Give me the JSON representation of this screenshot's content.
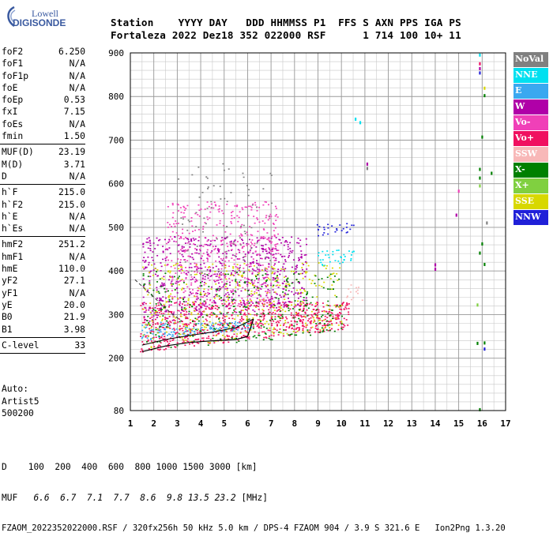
{
  "logo": {
    "line1": "Lowell",
    "line2": "DIGISONDE"
  },
  "header": {
    "labels": {
      "station": "Station",
      "yyyy": "YYYY",
      "day": "DAY",
      "ddd": "DDD",
      "hhmmss": "HHMMSS",
      "p1": "P1",
      "ffs": "FFS",
      "s": "S",
      "axn": "AXN",
      "pps": "PPS",
      "iga": "IGA",
      "ps": "PS"
    },
    "values": {
      "station": "Fortaleza",
      "yyyy": "2022",
      "day": "Dez18",
      "ddd": "352",
      "hhmmss": "022000",
      "p1": "RSF",
      "ffs": "",
      "s": "1",
      "axn": "714",
      "pps": "100",
      "iga": "10+",
      "ps": "11"
    }
  },
  "params": [
    {
      "group": 1,
      "items": [
        {
          "name": "foF2",
          "value": "6.250"
        },
        {
          "name": "foF1",
          "value": "N/A"
        },
        {
          "name": "foF1p",
          "value": "N/A"
        },
        {
          "name": "foE",
          "value": "N/A"
        },
        {
          "name": "foEp",
          "value": "0.53"
        },
        {
          "name": "fxI",
          "value": "7.15"
        },
        {
          "name": "foEs",
          "value": "N/A"
        },
        {
          "name": "fmin",
          "value": "1.50"
        }
      ]
    },
    {
      "group": 2,
      "items": [
        {
          "name": "MUF(D)",
          "value": "23.19"
        },
        {
          "name": "M(D)",
          "value": "3.71"
        },
        {
          "name": "D",
          "value": "N/A"
        }
      ]
    },
    {
      "group": 3,
      "items": [
        {
          "name": "h`F",
          "value": "215.0"
        },
        {
          "name": "h`F2",
          "value": "215.0"
        },
        {
          "name": "h`E",
          "value": "N/A"
        },
        {
          "name": "h`Es",
          "value": "N/A"
        }
      ]
    },
    {
      "group": 4,
      "items": [
        {
          "name": "hmF2",
          "value": "251.2"
        },
        {
          "name": "hmF1",
          "value": "N/A"
        },
        {
          "name": "hmE",
          "value": "110.0"
        },
        {
          "name": "yF2",
          "value": "27.1"
        },
        {
          "name": "yF1",
          "value": "N/A"
        },
        {
          "name": "yE",
          "value": "20.0"
        },
        {
          "name": "B0",
          "value": "21.9"
        },
        {
          "name": "B1",
          "value": "3.98"
        }
      ]
    },
    {
      "group": 5,
      "items": [
        {
          "name": "C-level",
          "value": "33"
        }
      ]
    }
  ],
  "auto": {
    "line1": "Auto:",
    "line2": "Artist5",
    "line3": "500200"
  },
  "legend": [
    {
      "label": "NoVal",
      "bg": "#808080",
      "fg": "#ffffff"
    },
    {
      "label": "NNE",
      "bg": "#00e0f0",
      "fg": "#ffffff"
    },
    {
      "label": "E",
      "bg": "#3aa8f0",
      "fg": "#ffffff"
    },
    {
      "label": "W",
      "bg": "#b000a8",
      "fg": "#ffffff"
    },
    {
      "label": "Vo-",
      "bg": "#f040b8",
      "fg": "#ffffff"
    },
    {
      "label": "Vo+",
      "bg": "#f01060",
      "fg": "#ffffff"
    },
    {
      "label": "SSW",
      "bg": "#f8b8b8",
      "fg": "#ffffff"
    },
    {
      "label": "X-",
      "bg": "#008000",
      "fg": "#ffffff"
    },
    {
      "label": "X+",
      "bg": "#80d040",
      "fg": "#ffffff"
    },
    {
      "label": "SSE",
      "bg": "#d8d800",
      "fg": "#ffffff"
    },
    {
      "label": "NNW",
      "bg": "#2020d8",
      "fg": "#ffffff"
    }
  ],
  "footer": {
    "d_label": "D",
    "d_values": [
      "100",
      "200",
      "400",
      "600",
      "800",
      "1000",
      "1500",
      "3000"
    ],
    "d_unit": "[km]",
    "muf_label": "MUF",
    "muf_values": [
      "6.6",
      "6.7",
      "7.1",
      "7.7",
      "8.6",
      "9.8",
      "13.5",
      "23.2"
    ],
    "muf_unit": "[MHz]",
    "file_line": "FZAOM_2022352022000.RSF / 320fx256h 50 kHz 5.0 km / DPS-4 FZAOM 904 / 3.9 S 321.6 E   Ion2Png 1.3.20"
  },
  "chart_data": {
    "type": "scatter",
    "x_ticks": [
      1,
      2,
      3,
      4,
      5,
      6,
      7,
      8,
      9,
      10,
      11,
      12,
      13,
      14,
      15,
      16,
      17
    ],
    "y_ticks": [
      80,
      200,
      300,
      400,
      500,
      600,
      700,
      800,
      900
    ],
    "xlim": [
      1,
      17
    ],
    "ylim": [
      80,
      900
    ],
    "grid": true,
    "profile_curve": [
      [
        1.5,
        215
      ],
      [
        2.5,
        228
      ],
      [
        3.5,
        236
      ],
      [
        4.5,
        240
      ],
      [
        5.5,
        243
      ],
      [
        6.0,
        250
      ],
      [
        6.25,
        290
      ]
    ],
    "trace_curve": [
      [
        1.5,
        230
      ],
      [
        2.5,
        243
      ],
      [
        3.5,
        252
      ],
      [
        4.5,
        260
      ],
      [
        5.5,
        270
      ],
      [
        6.25,
        290
      ]
    ],
    "dash_curve": [
      [
        1.2,
        380
      ],
      [
        1.7,
        355
      ],
      [
        2.2,
        330
      ],
      [
        2.7,
        305
      ],
      [
        3.2,
        285
      ]
    ],
    "echo_regions": [
      {
        "color": "#3aa8f0",
        "f": [
          1.4,
          6.2
        ],
        "h": [
          240,
          285
        ],
        "density": 0.9
      },
      {
        "color": "#f01060",
        "f": [
          1.4,
          10.3
        ],
        "h": [
          215,
          330
        ],
        "density": 0.8
      },
      {
        "color": "#b000a8",
        "f": [
          1.5,
          8.5
        ],
        "h": [
          280,
          480
        ],
        "density": 0.55
      },
      {
        "color": "#f040b8",
        "f": [
          2.5,
          7.3
        ],
        "h": [
          300,
          560
        ],
        "density": 0.45
      },
      {
        "color": "#00e0f0",
        "f": [
          8.9,
          10.5
        ],
        "h": [
          410,
          450
        ],
        "density": 0.6
      },
      {
        "color": "#2020d8",
        "f": [
          8.9,
          10.5
        ],
        "h": [
          480,
          510
        ],
        "density": 0.6
      },
      {
        "color": "#d8d800",
        "f": [
          1.5,
          10.0
        ],
        "h": [
          220,
          420
        ],
        "density": 0.25
      },
      {
        "color": "#008000",
        "f": [
          1.5,
          10.0
        ],
        "h": [
          210,
          400
        ],
        "density": 0.2
      },
      {
        "color": "#f8b8b8",
        "f": [
          10.2,
          10.9
        ],
        "h": [
          330,
          370
        ],
        "density": 0.5
      },
      {
        "color": "#808080",
        "f": [
          3.0,
          7.0
        ],
        "h": [
          380,
          650
        ],
        "density": 0.08
      }
    ],
    "sparse_points": [
      [
        10.6,
        748,
        "#00e0f0"
      ],
      [
        10.8,
        740,
        "#00e0f0"
      ],
      [
        11.1,
        645,
        "#b000a8"
      ],
      [
        11.1,
        635,
        "#808080"
      ],
      [
        14.0,
        414,
        "#b000a8"
      ],
      [
        14.0,
        404,
        "#b000a8"
      ],
      [
        14.9,
        528,
        "#b000a8"
      ],
      [
        15.0,
        583,
        "#f040b8"
      ],
      [
        15.9,
        864,
        "#b000a8"
      ],
      [
        15.9,
        854,
        "#2020d8"
      ],
      [
        15.9,
        875,
        "#f01060"
      ],
      [
        15.9,
        895,
        "#00e0f0"
      ],
      [
        16.1,
        819,
        "#d8d800"
      ],
      [
        16.1,
        802,
        "#008000"
      ],
      [
        16.0,
        707,
        "#008000"
      ],
      [
        16.4,
        624,
        "#008000"
      ],
      [
        15.9,
        633,
        "#008000"
      ],
      [
        15.9,
        613,
        "#008000"
      ],
      [
        15.9,
        595,
        "#80d040"
      ],
      [
        16.0,
        462,
        "#008000"
      ],
      [
        15.9,
        441,
        "#008000"
      ],
      [
        16.1,
        415,
        "#008000"
      ],
      [
        15.8,
        322,
        "#80d040"
      ],
      [
        16.1,
        235,
        "#008000"
      ],
      [
        16.1,
        221,
        "#2020d8"
      ],
      [
        15.8,
        234,
        "#008000"
      ],
      [
        15.9,
        82,
        "#008000"
      ],
      [
        16.2,
        510,
        "#808080"
      ]
    ]
  }
}
